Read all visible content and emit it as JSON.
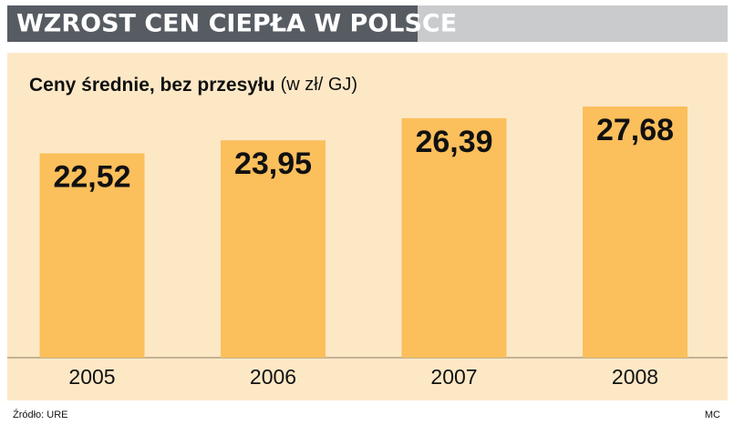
{
  "chart_data": {
    "type": "bar",
    "title": "WZROST CEN CIEPŁA W POLSCE",
    "subtitle": "Ceny średnie, bez przesyłu",
    "unit": "(w zł/ GJ)",
    "categories": [
      "2005",
      "2006",
      "2007",
      "2008"
    ],
    "values": [
      22.52,
      23.95,
      26.39,
      27.68
    ],
    "value_labels": [
      "22,52",
      "23,95",
      "26,39",
      "27,68"
    ],
    "color": "#fbbf5c",
    "source": "Źródło: URE",
    "credit": "MC"
  }
}
